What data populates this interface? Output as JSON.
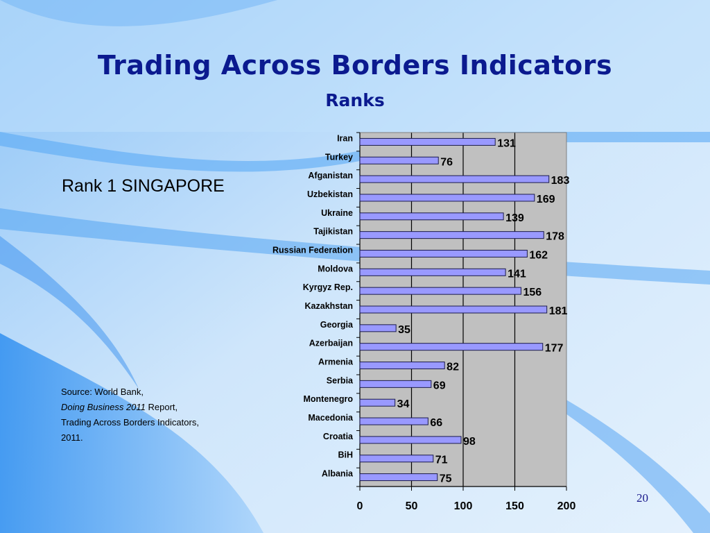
{
  "slide": {
    "title": "Trading Across Borders Indicators",
    "subtitle": "Ranks",
    "rank_note": "Rank 1 SINGAPORE",
    "source": {
      "line1": "Source: World Bank,",
      "line2_italic": "Doing Business 2011",
      "line2_rest": " Report,",
      "line3": "Trading Across Borders Indicators,",
      "line4": "2011."
    },
    "page_number": "20"
  },
  "colors": {
    "bar_fill": "#9999ff",
    "bar_stroke": "#1a1a4a",
    "plot_bg": "#c0c0c0",
    "title": "#0b1a8f"
  },
  "chart_data": {
    "type": "bar",
    "orientation": "horizontal",
    "categories": [
      "Iran",
      "Turkey",
      "Afganistan",
      "Uzbekistan",
      "Ukraine",
      "Tajikistan",
      "Russian Federation",
      "Moldova",
      "Kyrgyz Rep.",
      "Kazakhstan",
      "Georgia",
      "Azerbaijan",
      "Armenia",
      "Serbia",
      "Montenegro",
      "Macedonia",
      "Croatia",
      "BiH",
      "Albania"
    ],
    "values": [
      131,
      76,
      183,
      169,
      139,
      178,
      162,
      141,
      156,
      181,
      35,
      177,
      82,
      69,
      34,
      66,
      98,
      71,
      75
    ],
    "xlim": [
      0,
      200
    ],
    "xticks": [
      0,
      50,
      100,
      150,
      200
    ],
    "grid": true
  }
}
